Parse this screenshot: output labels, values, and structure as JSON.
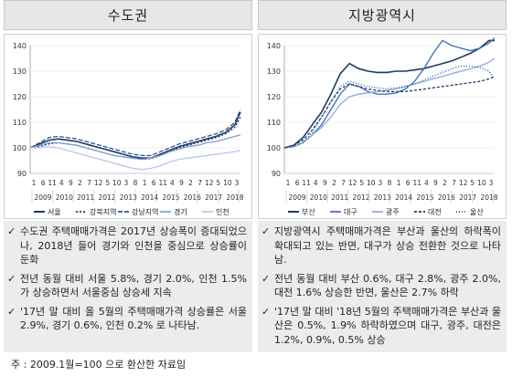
{
  "panels": [
    {
      "title": "수도권",
      "notes": [
        "수도권 주택매매가격은 2017년 상승폭이 증대되었으나, 2018년 들어 경기와 인천을 중심으로 상승률이 둔화",
        "전년 동월 대비 서울 5.8%, 경기 2.0%, 인천 1.5% 가 상승하면서 서울중심 상승세 지속",
        "'17년 말 대비 올 5월의 주택매매가격 상승률은 서울 2.9%, 경기 0.6%, 인천 0.2% 로 나타남."
      ]
    },
    {
      "title": "지방광역시",
      "notes": [
        "지방광역시 주택매매가격은 부산과 울산의 하락폭이 확대되고 있는 반면, 대구가 상승 전환한 것으로 나타남.",
        "전년 동월 대비 부산 0.6%, 대구 2.8%, 광주 2.0%, 대전 1.6% 상승한 반면, 울산은 2.7% 하락",
        "'17년 말 대비 '18년 5월의 주택매매가격은 부산과 울산은 0.5%, 1.9% 하락하였으며 대구, 광주, 대전은 1.2%, 0.9%, 0.5% 상승"
      ]
    }
  ],
  "bullet_mark": "✓",
  "source_note": "주 : 2009.1월=100 으로 환산한 자료임",
  "chart_data": [
    {
      "type": "line",
      "ylim": [
        90,
        140
      ],
      "yticks": [
        "90",
        "100",
        "110",
        "120",
        "130",
        "140"
      ],
      "xticks_month": [
        "1",
        "6",
        "11",
        "4",
        "9",
        "2",
        "7",
        "12",
        "5",
        "10",
        "3",
        "8",
        "1",
        "6",
        "11",
        "4",
        "9",
        "2",
        "7",
        "12",
        "5",
        "10",
        "3"
      ],
      "years": [
        "2009",
        "2010",
        "2011",
        "2012",
        "2013",
        "2014",
        "2015",
        "2016",
        "2017",
        "2018"
      ],
      "x": [
        0,
        5,
        10,
        15,
        20,
        25,
        30,
        35,
        40,
        45,
        50,
        55,
        60,
        65,
        70,
        75,
        80,
        85,
        90,
        95,
        100,
        105,
        110,
        113
      ],
      "series": [
        {
          "name": "서울",
          "color": "#1f3864",
          "dash": "",
          "width": 1.6,
          "values": [
            100,
            101.5,
            103,
            103.5,
            103,
            102.5,
            101.5,
            100.5,
            99.5,
            98.5,
            97.5,
            96.5,
            96,
            96,
            97.5,
            99,
            100.5,
            101.5,
            102.5,
            103.5,
            104.5,
            106,
            109,
            114
          ]
        },
        {
          "name": "강북지역",
          "color": "#1f3864",
          "dash": "2,2",
          "width": 1.3,
          "values": [
            100,
            100.5,
            101.5,
            102,
            101.5,
            101,
            100,
            99,
            98,
            97,
            96.5,
            96,
            95.5,
            95.8,
            97,
            98.5,
            100,
            101,
            102,
            103,
            104,
            105.5,
            108,
            112
          ]
        },
        {
          "name": "강남지역",
          "color": "#2e5597",
          "dash": "5,2",
          "width": 1.3,
          "values": [
            100,
            102,
            104,
            104.5,
            104,
            103.5,
            102.5,
            101.5,
            100.5,
            99.5,
            98.5,
            97.5,
            97,
            97,
            98.5,
            100,
            101.5,
            102.5,
            103.5,
            104.5,
            105.5,
            107,
            110,
            115
          ]
        },
        {
          "name": "경기",
          "color": "#7f9fcf",
          "dash": "",
          "width": 1.3,
          "values": [
            100,
            101,
            102,
            102,
            101.5,
            101,
            100,
            99,
            98,
            97,
            96.5,
            96,
            95.5,
            96,
            97,
            98.5,
            99.5,
            100.5,
            101,
            102,
            102.5,
            103.5,
            104.5,
            105
          ]
        },
        {
          "name": "인천",
          "color": "#b4c7e7",
          "dash": "",
          "width": 1.3,
          "values": [
            100,
            100,
            100.5,
            100,
            99,
            98,
            97,
            96,
            95,
            94,
            93,
            92,
            91.5,
            92,
            93,
            94.5,
            95.5,
            96,
            96.5,
            97,
            97.5,
            98,
            98.5,
            99
          ]
        }
      ]
    },
    {
      "type": "line",
      "ylim": [
        90,
        140
      ],
      "yticks": [
        "90",
        "100",
        "110",
        "120",
        "130",
        "140"
      ],
      "xticks_month": [
        "1",
        "6",
        "11",
        "4",
        "9",
        "2",
        "7",
        "12",
        "5",
        "10",
        "3",
        "8",
        "1",
        "6",
        "11",
        "4",
        "9",
        "2",
        "7",
        "12",
        "5",
        "10",
        "3"
      ],
      "years": [
        "2009",
        "2010",
        "2011",
        "2012",
        "2013",
        "2014",
        "2015",
        "2016",
        "2017",
        "2018"
      ],
      "x": [
        0,
        5,
        10,
        15,
        20,
        25,
        30,
        35,
        40,
        45,
        50,
        55,
        60,
        65,
        70,
        75,
        80,
        85,
        90,
        95,
        100,
        105,
        110,
        113
      ],
      "series": [
        {
          "name": "부산",
          "color": "#1f3864",
          "dash": "",
          "width": 1.6,
          "values": [
            100,
            101,
            104,
            109,
            114,
            121,
            129,
            133,
            131,
            130,
            129.5,
            129.5,
            130,
            130,
            130.5,
            131,
            132,
            133,
            134,
            135.5,
            137,
            139,
            142,
            142
          ]
        },
        {
          "name": "대구",
          "color": "#4472c4",
          "dash": "",
          "width": 1.4,
          "values": [
            100,
            100.5,
            102,
            105,
            109,
            115,
            121,
            125,
            124,
            122,
            121,
            121,
            121.5,
            123,
            126,
            131,
            137,
            142,
            140,
            139,
            138,
            139,
            141,
            143
          ]
        },
        {
          "name": "광주",
          "color": "#8faadc",
          "dash": "",
          "width": 1.3,
          "values": [
            100,
            100.5,
            102,
            105,
            108,
            112,
            117,
            120,
            121,
            121.5,
            122,
            122.5,
            123,
            124,
            125,
            126,
            127,
            128,
            129,
            130,
            131,
            132,
            133.5,
            135
          ]
        },
        {
          "name": "대전",
          "color": "#1f3864",
          "dash": "3,2",
          "width": 1.3,
          "values": [
            100,
            101,
            103,
            107,
            112,
            118,
            123,
            125,
            124,
            123,
            122.5,
            122,
            122,
            122,
            122.5,
            123,
            123.5,
            124,
            124.5,
            125,
            125.5,
            126,
            127,
            128
          ]
        },
        {
          "name": "울산",
          "color": "#2f5597",
          "dash": "1,2",
          "width": 1.4,
          "values": [
            100,
            100.5,
            102,
            106,
            112,
            118,
            124,
            126,
            125,
            124,
            123.5,
            123,
            123.5,
            124,
            125,
            126.5,
            128,
            129.5,
            131,
            132,
            132,
            131.5,
            130,
            127
          ]
        }
      ]
    }
  ]
}
